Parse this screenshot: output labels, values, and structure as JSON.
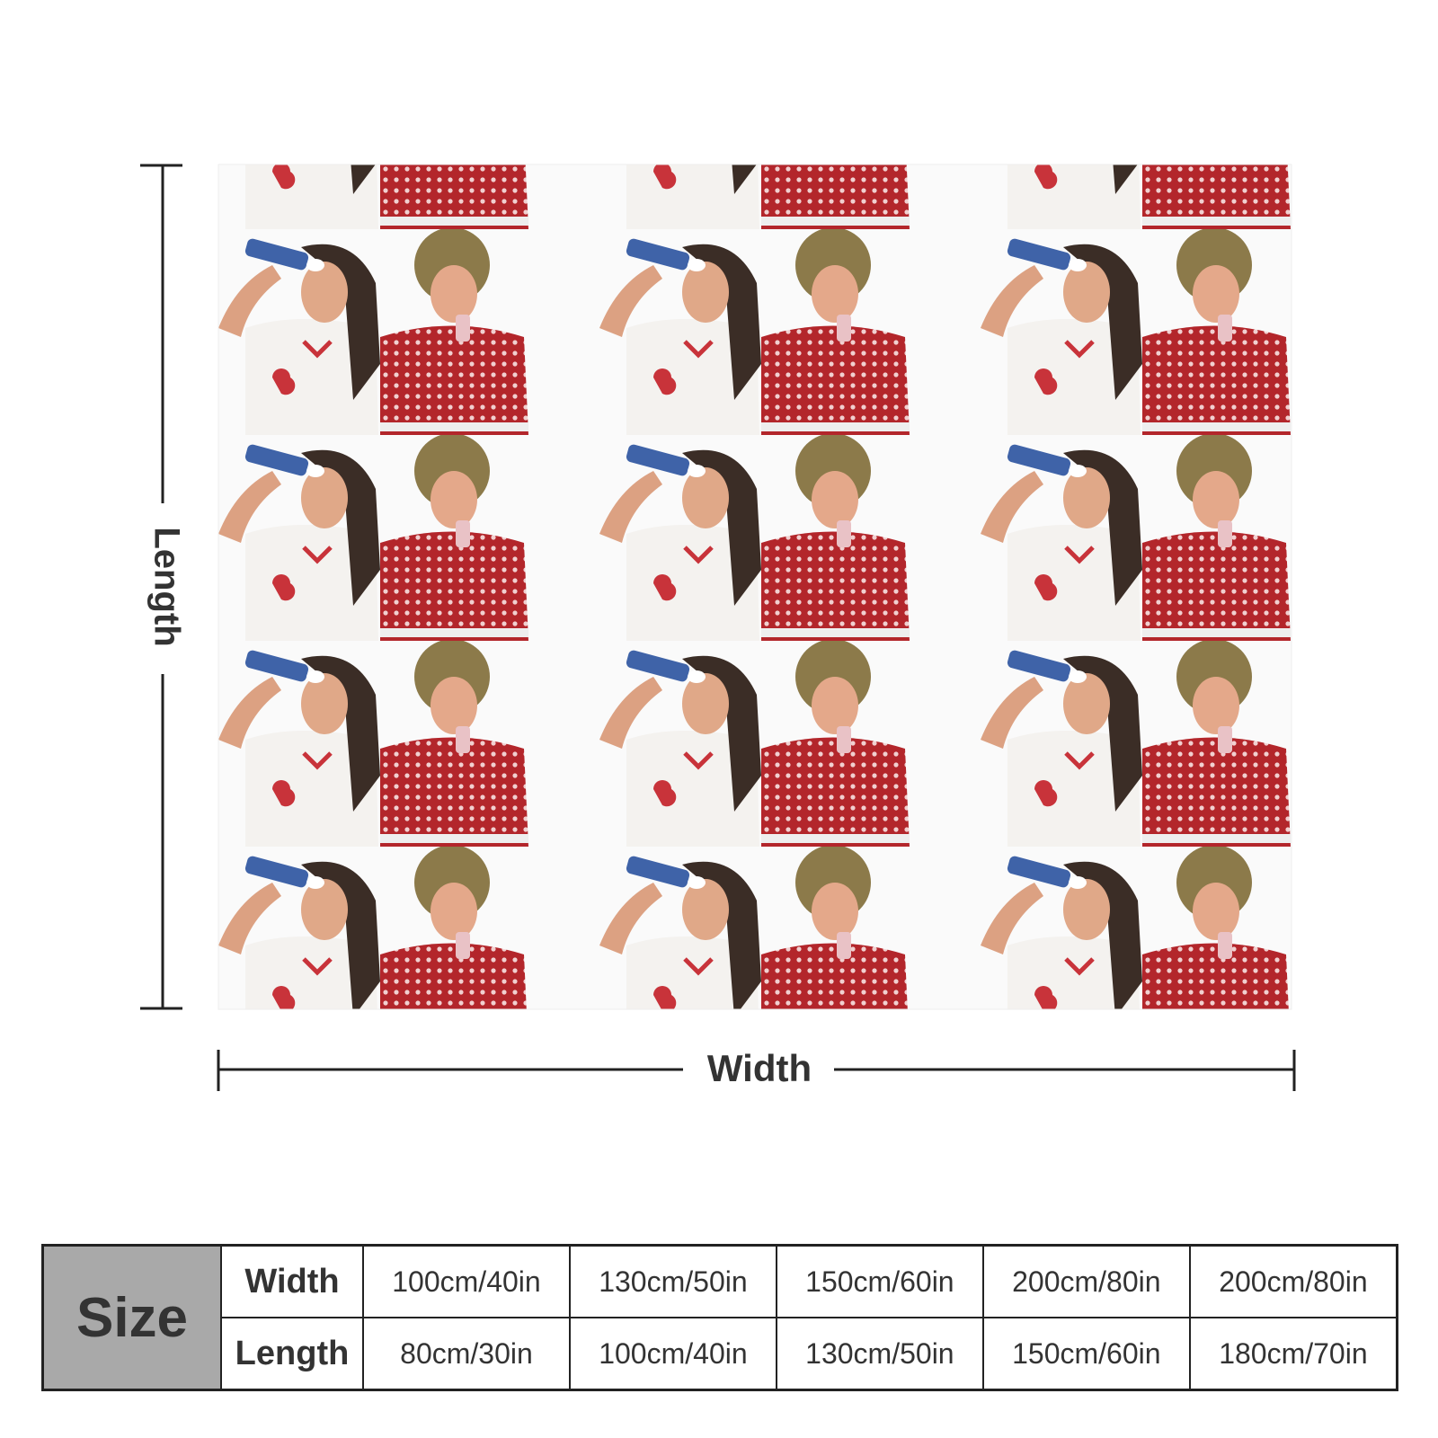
{
  "dimension_labels": {
    "length": "Length",
    "width": "Width"
  },
  "size_table": {
    "title": "Size",
    "rows": [
      {
        "label": "Width",
        "cells": [
          "100cm/40in",
          "130cm/50in",
          "150cm/60in",
          "200cm/80in",
          "200cm/80in"
        ]
      },
      {
        "label": "Length",
        "cells": [
          "80cm/30in",
          "100cm/40in",
          "130cm/50in",
          "150cm/60in",
          "180cm/70in"
        ]
      }
    ]
  }
}
